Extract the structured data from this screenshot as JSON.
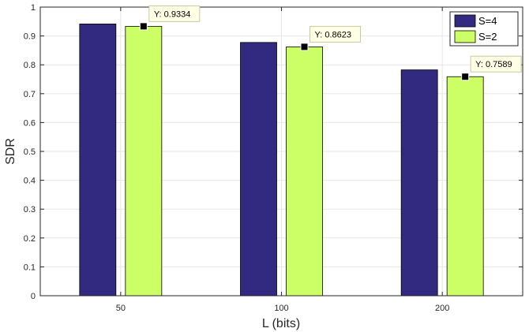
{
  "chart_data": {
    "type": "bar",
    "categories": [
      "50",
      "100",
      "200"
    ],
    "series": [
      {
        "name": "S=4",
        "values": [
          0.9415,
          0.8775,
          0.7825
        ],
        "color": "#312a80"
      },
      {
        "name": "S=2",
        "values": [
          0.9334,
          0.8623,
          0.7589
        ],
        "color": "#ccff66"
      }
    ],
    "xlabel": "L (bits)",
    "ylabel": "SDR",
    "ylim": [
      0,
      1
    ],
    "yticks": [
      "0",
      "0.1",
      "0.2",
      "0.3",
      "0.4",
      "0.5",
      "0.6",
      "0.7",
      "0.8",
      "0.9",
      "1"
    ],
    "grid": true,
    "legend_position": "top-right",
    "datatips": [
      {
        "series": "S=2",
        "category": "50",
        "text": "Y: 0.9334"
      },
      {
        "series": "S=2",
        "category": "100",
        "text": "Y: 0.8623"
      },
      {
        "series": "S=2",
        "category": "200",
        "text": "Y: 0.7589"
      }
    ]
  }
}
